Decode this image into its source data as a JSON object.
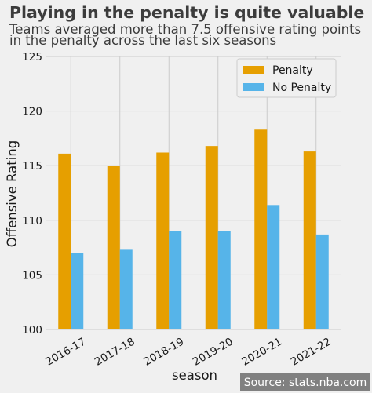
{
  "chart_data": {
    "type": "bar",
    "title": "Playing in the penalty is quite valuable",
    "subtitle_lines": [
      "Teams averaged more than 7.5 offensive rating points",
      "in the penalty across the last six seasons"
    ],
    "xlabel": "season",
    "ylabel": "Offensive Rating",
    "categories": [
      "2016-17",
      "2017-18",
      "2018-19",
      "2019-20",
      "2020-21",
      "2021-22"
    ],
    "series": [
      {
        "name": "Penalty",
        "color": "#e69f00",
        "values": [
          116.1,
          115.0,
          116.2,
          116.8,
          118.3,
          116.3
        ]
      },
      {
        "name": "No Penalty",
        "color": "#56b4e9",
        "values": [
          107.0,
          107.3,
          109.0,
          109.0,
          111.4,
          108.7
        ]
      }
    ],
    "ylim": [
      100,
      125
    ],
    "yticks": [
      100,
      105,
      110,
      115,
      120,
      125
    ],
    "grid": true,
    "legend_position": "top-right",
    "source": "Source: stats.nba.com"
  }
}
